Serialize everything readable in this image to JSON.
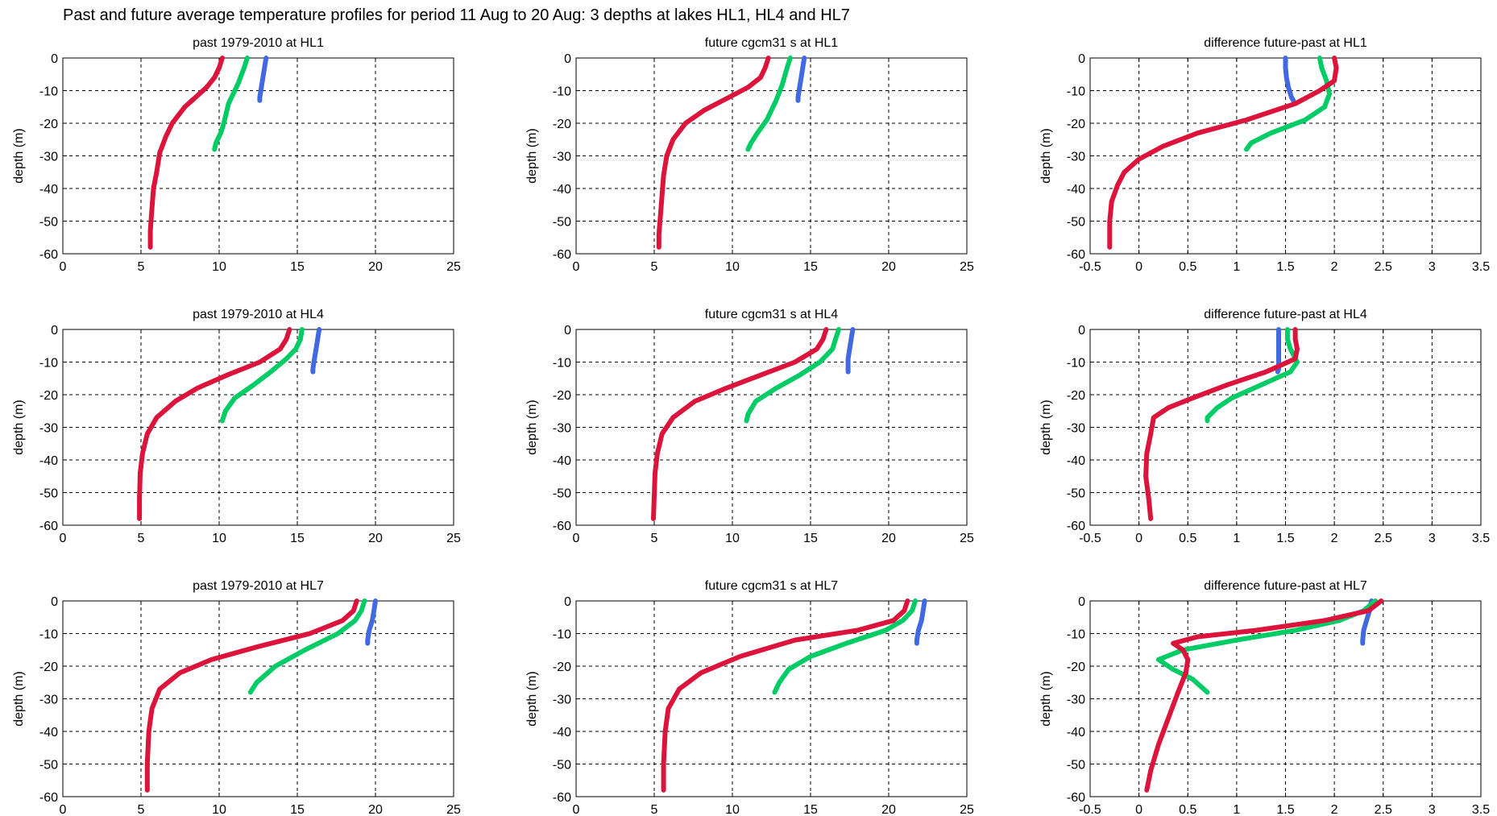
{
  "figure_title": "Past and future average temperature profiles for period 11 Aug to 20 Aug: 3 depths at lakes HL1, HL4 and HL7",
  "colors": {
    "red": "#dc143c",
    "green": "#00cc66",
    "blue": "#4169e1"
  },
  "chart_data": [
    {
      "type": "line",
      "title": "past 1979-2010 at HL1",
      "xlabel": "",
      "ylabel": "depth (m)",
      "xlim": [
        0,
        25
      ],
      "xticks": [
        "0",
        "5",
        "10",
        "15",
        "20",
        "25"
      ],
      "ylim": [
        -60,
        0
      ],
      "yticks": [
        "0",
        "-10",
        "-20",
        "-30",
        "-40",
        "-50",
        "-60"
      ],
      "grid": true,
      "series": [
        {
          "color": "blue",
          "x": [
            13.0,
            12.9,
            12.8,
            12.7,
            12.6,
            12.6
          ],
          "y": [
            0,
            -3,
            -6,
            -9,
            -12,
            -13
          ]
        },
        {
          "color": "green",
          "x": [
            11.8,
            11.6,
            11.2,
            10.6,
            10.3,
            10.1,
            9.8,
            9.7
          ],
          "y": [
            0,
            -3,
            -8,
            -14,
            -20,
            -23,
            -26,
            -28
          ]
        },
        {
          "color": "red",
          "x": [
            10.2,
            10.0,
            9.7,
            9.2,
            8.5,
            7.8,
            7.0,
            6.6,
            6.2,
            6.0,
            5.8,
            5.7,
            5.6,
            5.6
          ],
          "y": [
            0,
            -3,
            -6,
            -9,
            -12,
            -15,
            -20,
            -24,
            -29,
            -35,
            -40,
            -46,
            -53,
            -58
          ]
        }
      ]
    },
    {
      "type": "line",
      "title": "future cgcm31 s at HL1",
      "xlabel": "",
      "ylabel": "depth (m)",
      "xlim": [
        0,
        25
      ],
      "xticks": [
        "0",
        "5",
        "10",
        "15",
        "20",
        "25"
      ],
      "ylim": [
        -60,
        0
      ],
      "yticks": [
        "0",
        "-10",
        "-20",
        "-30",
        "-40",
        "-50",
        "-60"
      ],
      "grid": true,
      "series": [
        {
          "color": "blue",
          "x": [
            14.6,
            14.5,
            14.4,
            14.3,
            14.2,
            14.2
          ],
          "y": [
            0,
            -3,
            -6,
            -9,
            -12,
            -13
          ]
        },
        {
          "color": "green",
          "x": [
            13.7,
            13.5,
            13.2,
            12.8,
            12.2,
            11.6,
            11.2,
            11.0
          ],
          "y": [
            0,
            -3,
            -8,
            -13,
            -19,
            -23,
            -26,
            -28
          ]
        },
        {
          "color": "red",
          "x": [
            12.3,
            12.1,
            11.8,
            11.0,
            9.8,
            8.2,
            7.0,
            6.2,
            5.8,
            5.6,
            5.5,
            5.4,
            5.3,
            5.3
          ],
          "y": [
            0,
            -3,
            -6,
            -9,
            -12,
            -16,
            -20,
            -25,
            -30,
            -36,
            -42,
            -48,
            -54,
            -58
          ]
        }
      ]
    },
    {
      "type": "line",
      "title": "difference future-past at HL1",
      "xlabel": "",
      "ylabel": "depth (m)",
      "xlim": [
        -0.5,
        3.5
      ],
      "xticks": [
        "-0.5",
        "0",
        "0.5",
        "1",
        "1.5",
        "2",
        "2.5",
        "3",
        "3.5"
      ],
      "ylim": [
        -60,
        0
      ],
      "yticks": [
        "0",
        "-10",
        "-20",
        "-30",
        "-40",
        "-50",
        "-60"
      ],
      "grid": true,
      "series": [
        {
          "color": "blue",
          "x": [
            1.5,
            1.5,
            1.51,
            1.53,
            1.56,
            1.58
          ],
          "y": [
            0,
            -3,
            -6,
            -9,
            -12,
            -13
          ]
        },
        {
          "color": "green",
          "x": [
            1.85,
            1.87,
            1.92,
            1.95,
            1.9,
            1.7,
            1.35,
            1.15,
            1.1
          ],
          "y": [
            0,
            -3,
            -7,
            -11,
            -15,
            -19,
            -23,
            -26,
            -28
          ]
        },
        {
          "color": "red",
          "x": [
            2.0,
            2.02,
            2.0,
            1.85,
            1.6,
            1.1,
            0.6,
            0.25,
            0.0,
            -0.15,
            -0.22,
            -0.28,
            -0.3,
            -0.3
          ],
          "y": [
            0,
            -3,
            -7,
            -10,
            -14,
            -19,
            -23,
            -27,
            -31,
            -35,
            -39,
            -44,
            -50,
            -58
          ]
        }
      ]
    },
    {
      "type": "line",
      "title": "past 1979-2010 at HL4",
      "xlabel": "",
      "ylabel": "depth (m)",
      "xlim": [
        0,
        25
      ],
      "xticks": [
        "0",
        "5",
        "10",
        "15",
        "20",
        "25"
      ],
      "ylim": [
        -60,
        0
      ],
      "yticks": [
        "0",
        "-10",
        "-20",
        "-30",
        "-40",
        "-50",
        "-60"
      ],
      "grid": true,
      "series": [
        {
          "color": "blue",
          "x": [
            16.4,
            16.3,
            16.2,
            16.1,
            16.0,
            16.0
          ],
          "y": [
            0,
            -3,
            -6,
            -9,
            -12,
            -13
          ]
        },
        {
          "color": "green",
          "x": [
            15.3,
            15.2,
            14.9,
            14.3,
            13.3,
            12.2,
            11.0,
            10.4,
            10.2
          ],
          "y": [
            0,
            -3,
            -6,
            -9,
            -13,
            -17,
            -21,
            -25,
            -28
          ]
        },
        {
          "color": "red",
          "x": [
            14.5,
            14.3,
            13.9,
            12.6,
            10.5,
            8.6,
            7.2,
            6.0,
            5.4,
            5.1,
            4.95,
            4.9,
            4.9
          ],
          "y": [
            0,
            -3,
            -6,
            -10,
            -14,
            -18,
            -22,
            -27,
            -32,
            -38,
            -44,
            -52,
            -58
          ]
        }
      ]
    },
    {
      "type": "line",
      "title": "future cgcm31 s at HL4",
      "xlabel": "",
      "ylabel": "depth (m)",
      "xlim": [
        0,
        25
      ],
      "xticks": [
        "0",
        "5",
        "10",
        "15",
        "20",
        "25"
      ],
      "ylim": [
        -60,
        0
      ],
      "yticks": [
        "0",
        "-10",
        "-20",
        "-30",
        "-40",
        "-50",
        "-60"
      ],
      "grid": true,
      "series": [
        {
          "color": "blue",
          "x": [
            17.7,
            17.6,
            17.5,
            17.4,
            17.4,
            17.4
          ],
          "y": [
            0,
            -3,
            -6,
            -9,
            -12,
            -13
          ]
        },
        {
          "color": "green",
          "x": [
            16.8,
            16.6,
            16.4,
            15.6,
            14.3,
            12.8,
            11.5,
            11.0,
            10.9
          ],
          "y": [
            0,
            -3,
            -6,
            -10,
            -14,
            -18,
            -22,
            -26,
            -28
          ]
        },
        {
          "color": "red",
          "x": [
            16.0,
            15.8,
            15.4,
            14.0,
            11.8,
            9.6,
            7.6,
            6.2,
            5.5,
            5.2,
            5.05,
            5.0,
            4.95
          ],
          "y": [
            0,
            -3,
            -6,
            -10,
            -14,
            -18,
            -22,
            -27,
            -32,
            -38,
            -44,
            -51,
            -58
          ]
        }
      ]
    },
    {
      "type": "line",
      "title": "difference future-past at HL4",
      "xlabel": "",
      "ylabel": "depth (m)",
      "xlim": [
        -0.5,
        3.5
      ],
      "xticks": [
        "-0.5",
        "0",
        "0.5",
        "1",
        "1.5",
        "2",
        "2.5",
        "3",
        "3.5"
      ],
      "ylim": [
        -60,
        0
      ],
      "yticks": [
        "0",
        "-10",
        "-20",
        "-30",
        "-40",
        "-50",
        "-60"
      ],
      "grid": true,
      "series": [
        {
          "color": "blue",
          "x": [
            1.43,
            1.43,
            1.43,
            1.43,
            1.43,
            1.42
          ],
          "y": [
            0,
            -3,
            -6,
            -9,
            -12,
            -13
          ]
        },
        {
          "color": "green",
          "x": [
            1.52,
            1.52,
            1.55,
            1.62,
            1.55,
            1.25,
            0.95,
            0.8,
            0.7,
            0.7
          ],
          "y": [
            0,
            -3,
            -6,
            -10,
            -13,
            -17,
            -21,
            -24,
            -27,
            -28
          ]
        },
        {
          "color": "red",
          "x": [
            1.6,
            1.6,
            1.62,
            1.6,
            1.3,
            0.9,
            0.55,
            0.3,
            0.15,
            0.12,
            0.08,
            0.07,
            0.1,
            0.12
          ],
          "y": [
            0,
            -3,
            -6,
            -9,
            -13,
            -17,
            -21,
            -24,
            -27,
            -32,
            -38,
            -45,
            -52,
            -58
          ]
        }
      ]
    },
    {
      "type": "line",
      "title": "past 1979-2010 at HL7",
      "xlabel": "",
      "ylabel": "depth (m)",
      "xlim": [
        0,
        25
      ],
      "xticks": [
        "0",
        "5",
        "10",
        "15",
        "20",
        "25"
      ],
      "ylim": [
        -60,
        0
      ],
      "yticks": [
        "0",
        "-10",
        "-20",
        "-30",
        "-40",
        "-50",
        "-60"
      ],
      "grid": true,
      "series": [
        {
          "color": "blue",
          "x": [
            20.0,
            19.9,
            19.8,
            19.6,
            19.5,
            19.5
          ],
          "y": [
            0,
            -3,
            -6,
            -9,
            -12,
            -13
          ]
        },
        {
          "color": "green",
          "x": [
            19.3,
            19.1,
            18.7,
            17.6,
            15.5,
            13.6,
            12.4,
            12.0
          ],
          "y": [
            0,
            -3,
            -6,
            -10,
            -15,
            -20,
            -25,
            -28
          ]
        },
        {
          "color": "red",
          "x": [
            18.8,
            18.6,
            17.9,
            15.8,
            12.5,
            9.5,
            7.5,
            6.2,
            5.7,
            5.5,
            5.4,
            5.4
          ],
          "y": [
            0,
            -3,
            -6,
            -10,
            -14,
            -18,
            -22,
            -27,
            -33,
            -40,
            -50,
            -58
          ]
        }
      ]
    },
    {
      "type": "line",
      "title": "future cgcm31 s at HL7",
      "xlabel": "",
      "ylabel": "depth (m)",
      "xlim": [
        0,
        25
      ],
      "xticks": [
        "0",
        "5",
        "10",
        "15",
        "20",
        "25"
      ],
      "ylim": [
        -60,
        0
      ],
      "yticks": [
        "0",
        "-10",
        "-20",
        "-30",
        "-40",
        "-50",
        "-60"
      ],
      "grid": true,
      "series": [
        {
          "color": "blue",
          "x": [
            22.3,
            22.2,
            22.1,
            21.9,
            21.8,
            21.8
          ],
          "y": [
            0,
            -3,
            -6,
            -9,
            -12,
            -13
          ]
        },
        {
          "color": "green",
          "x": [
            21.7,
            21.5,
            20.9,
            19.8,
            17.3,
            15.0,
            13.6,
            13.0,
            12.7
          ],
          "y": [
            0,
            -3,
            -6,
            -9,
            -13,
            -17,
            -21,
            -25,
            -28
          ]
        },
        {
          "color": "red",
          "x": [
            21.2,
            21.0,
            20.3,
            18.0,
            14.0,
            10.5,
            8.0,
            6.6,
            5.9,
            5.7,
            5.6,
            5.6
          ],
          "y": [
            0,
            -3,
            -6,
            -9,
            -12,
            -17,
            -22,
            -27,
            -33,
            -40,
            -50,
            -58
          ]
        }
      ]
    },
    {
      "type": "line",
      "title": "difference future-past at HL7",
      "xlabel": "",
      "ylabel": "depth (m)",
      "xlim": [
        -0.5,
        3.5
      ],
      "xticks": [
        "-0.5",
        "0",
        "0.5",
        "1",
        "1.5",
        "2",
        "2.5",
        "3",
        "3.5"
      ],
      "ylim": [
        -60,
        0
      ],
      "yticks": [
        "0",
        "-10",
        "-20",
        "-30",
        "-40",
        "-50",
        "-60"
      ],
      "grid": true,
      "series": [
        {
          "color": "blue",
          "x": [
            2.38,
            2.36,
            2.33,
            2.3,
            2.29,
            2.29
          ],
          "y": [
            0,
            -3,
            -6,
            -9,
            -12,
            -13
          ]
        },
        {
          "color": "green",
          "x": [
            2.42,
            2.3,
            2.05,
            1.6,
            1.0,
            0.45,
            0.2,
            0.35,
            0.55,
            0.7
          ],
          "y": [
            0,
            -3,
            -6,
            -9,
            -12,
            -15,
            -18,
            -21,
            -24,
            -28
          ]
        },
        {
          "color": "red",
          "x": [
            2.48,
            2.35,
            1.9,
            1.2,
            0.6,
            0.35,
            0.45,
            0.5,
            0.48,
            0.4,
            0.3,
            0.2,
            0.12,
            0.08
          ],
          "y": [
            0,
            -3,
            -6,
            -9,
            -11,
            -13,
            -15,
            -18,
            -22,
            -28,
            -36,
            -44,
            -52,
            -58
          ]
        }
      ]
    }
  ]
}
